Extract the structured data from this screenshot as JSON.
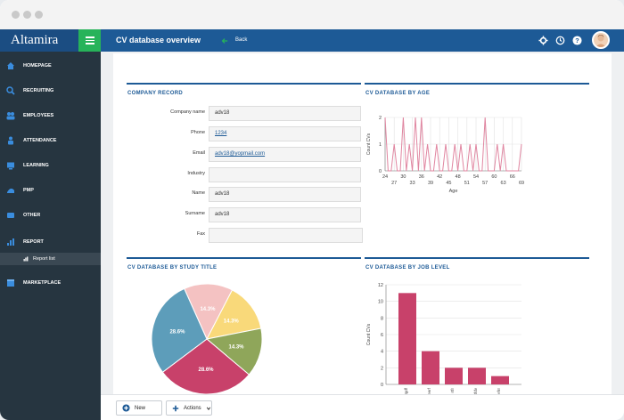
{
  "app": {
    "brand": "Altamira",
    "title": "CV database overview",
    "back_label": "Back"
  },
  "colors": {
    "primary": "#1d5a96",
    "accent": "#27b35a",
    "sidebar": "#263540",
    "line": "#e085a0",
    "bar": "#c8416a"
  },
  "sidebar": {
    "items": [
      {
        "label": "HOMEPAGE",
        "icon": "home-icon"
      },
      {
        "label": "RECRUITING",
        "icon": "recruiting-icon"
      },
      {
        "label": "EMPLOYEES",
        "icon": "employees-icon"
      },
      {
        "label": "ATTENDANCE",
        "icon": "attendance-icon"
      },
      {
        "label": "LEARNING",
        "icon": "learning-icon"
      },
      {
        "label": "PMP",
        "icon": "pmp-icon"
      },
      {
        "label": "OTHER",
        "icon": "other-icon"
      },
      {
        "label": "REPORT",
        "icon": "report-icon"
      },
      {
        "label": "MARKETPLACE",
        "icon": "marketplace-icon"
      }
    ],
    "sub_item": {
      "label": "Report list"
    }
  },
  "company_record": {
    "title": "COMPANY RECORD",
    "fields": [
      {
        "label": "Company name",
        "value": "adv18"
      },
      {
        "label": "Phone",
        "value": "1234"
      },
      {
        "label": "Email",
        "value": "adv18@yopmail.com"
      },
      {
        "label": "Industry",
        "value": ""
      },
      {
        "label": "Name",
        "value": "adv18"
      },
      {
        "label": "Surname",
        "value": "adv18"
      },
      {
        "label": "Fax",
        "value": ""
      }
    ]
  },
  "sections": {
    "by_age": "CV DATABASE BY AGE",
    "by_study": "CV DATABASE BY STUDY TITLE",
    "by_job": "CV DATABASE BY JOB LEVEL"
  },
  "buttons": {
    "new": "New",
    "actions": "Actions"
  },
  "chart_data": [
    {
      "type": "line",
      "xlabel": "Age",
      "ylabel": "Count CVs",
      "ylim": [
        0,
        2
      ],
      "x_ticks": [
        24,
        27,
        30,
        33,
        36,
        39,
        42,
        45,
        48,
        51,
        54,
        57,
        60,
        63,
        66,
        69
      ],
      "y_ticks": [
        0,
        1,
        2
      ],
      "x": [
        24,
        25,
        26,
        27,
        28,
        29,
        30,
        31,
        32,
        33,
        34,
        35,
        36,
        37,
        38,
        39,
        40,
        41,
        42,
        43,
        44,
        45,
        46,
        47,
        48,
        49,
        50,
        51,
        52,
        53,
        54,
        55,
        56,
        57,
        58,
        59,
        60,
        61,
        62,
        63,
        64,
        65,
        66,
        67,
        68,
        69
      ],
      "values": [
        2,
        0,
        0,
        1,
        0,
        0,
        2,
        0,
        1,
        0,
        2,
        0,
        2,
        0,
        1,
        0,
        0,
        1,
        0,
        0,
        1,
        0,
        0,
        1,
        0,
        1,
        0,
        0,
        1,
        0,
        1,
        0,
        0,
        2,
        0,
        0,
        0,
        1,
        0,
        1,
        0,
        0,
        0,
        0,
        0,
        1
      ],
      "grid": true
    },
    {
      "type": "pie",
      "slices": [
        {
          "label": "14.3%",
          "value": 14.3,
          "color": "#f4c2c2"
        },
        {
          "label": "14.3%",
          "value": 14.3,
          "color": "#f9d97a"
        },
        {
          "label": "14.3%",
          "value": 14.3,
          "color": "#8fa65a"
        },
        {
          "label": "28.6%",
          "value": 28.6,
          "color": "#c8416a"
        },
        {
          "label": "28.6%",
          "value": 28.6,
          "color": "#5d9dba"
        }
      ]
    },
    {
      "type": "bar",
      "ylabel": "Count CVs",
      "ylim": [
        0,
        12
      ],
      "y_ticks": [
        0,
        2,
        4,
        6,
        8,
        10,
        12
      ],
      "categories": [
        "tgdf",
        "eerf",
        "rtfr",
        "tfdv",
        "efrr"
      ],
      "values": [
        11,
        4,
        2,
        2,
        1
      ],
      "grid": true
    }
  ]
}
